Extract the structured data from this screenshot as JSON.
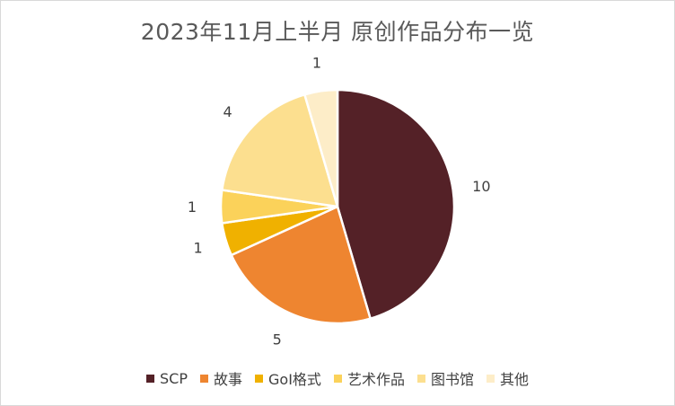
{
  "chart_data": {
    "type": "pie",
    "title": "2023年11月上半月 原创作品分布一览",
    "categories": [
      "SCP",
      "故事",
      "GoI格式",
      "艺术作品",
      "图书馆",
      "其他"
    ],
    "values": [
      10,
      5,
      1,
      1,
      4,
      1
    ],
    "colors": [
      "#542127",
      "#ee8530",
      "#f0b100",
      "#fbd25a",
      "#fcdf8f",
      "#fdedc8"
    ],
    "data_labels": [
      "10",
      "5",
      "1",
      "1",
      "4",
      "1"
    ],
    "legend_placement": "bottom",
    "start_angle_deg": 0,
    "direction": "clockwise"
  }
}
